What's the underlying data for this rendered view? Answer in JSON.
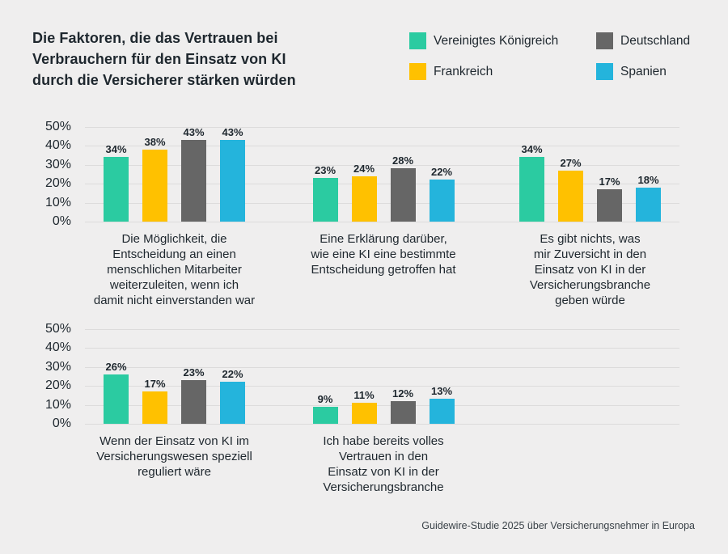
{
  "page": {
    "footer": "Guidewire-Studie 2025 über Versicherungsnehmer in Europa",
    "background": "#efeeee",
    "text_color": "#1e272e",
    "gridline_color": "#dcdbdb"
  },
  "legend": {
    "items": [
      {
        "label": "Vereinigtes Königreich",
        "color": "#2bcba1"
      },
      {
        "label": "Deutschland",
        "color": "#666666"
      },
      {
        "label": "Frankreich",
        "color": "#ffc100"
      },
      {
        "label": "Spanien",
        "color": "#24b4dc"
      }
    ]
  },
  "chart_data": {
    "type": "bar",
    "title": "Die Faktoren, die das Vertrauen bei\nVerbrauchern für den Einsatz von KI\ndurch die Versicherer stärken würden",
    "xlabel": "",
    "ylabel": "",
    "ylim": [
      0,
      50
    ],
    "yticks": [
      50,
      40,
      30,
      20,
      10,
      0
    ],
    "ytick_suffix": "%",
    "grid": true,
    "legend_position": "top-right",
    "value_label_suffix": "%",
    "categories": [
      "Die Möglichkeit, die\nEntscheidung an einen\nmenschlichen Mitarbeiter\nweiterzuleiten, wenn ich\ndamit nicht einverstanden war",
      "Eine Erklärung darüber,\nwie eine KI eine bestimmte\nEntscheidung getroffen hat",
      "Es gibt nichts, was\nmir Zuversicht in den\nEinsatz von KI in der\nVersicherungsbranche\ngeben würde",
      "Wenn der Einsatz von KI im\nVersicherungswesen speziell\nreguliert wäre",
      "Ich habe bereits volles\nVertrauen in den\nEinsatz von KI in der\nVersicherungsbranche"
    ],
    "series": [
      {
        "name": "Vereinigtes Königreich",
        "color": "#2bcba1",
        "values": [
          34,
          23,
          34,
          26,
          9
        ]
      },
      {
        "name": "Frankreich",
        "color": "#ffc100",
        "values": [
          38,
          24,
          27,
          17,
          11
        ]
      },
      {
        "name": "Deutschland",
        "color": "#666666",
        "values": [
          43,
          28,
          17,
          23,
          12
        ]
      },
      {
        "name": "Spanien",
        "color": "#24b4dc",
        "values": [
          43,
          22,
          18,
          22,
          13
        ]
      }
    ],
    "row_layout": [
      [
        0,
        1,
        2
      ],
      [
        3,
        4
      ]
    ]
  }
}
